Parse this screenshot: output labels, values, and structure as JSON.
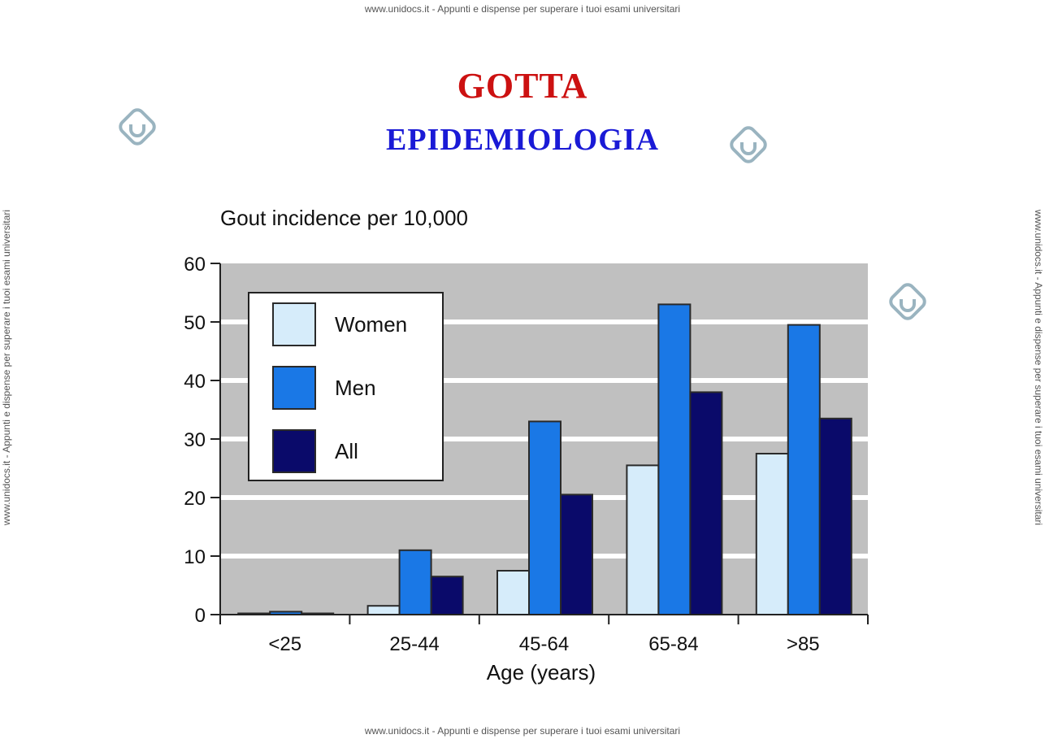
{
  "watermark": {
    "top": "www.unidocs.it - Appunti e dispense per superare i tuoi esami universitari",
    "bottom": "www.unidocs.it - Appunti e dispense per superare i tuoi esami universitari",
    "left": "www.unidocs.it - Appunti e dispense per superare i tuoi esami universitari",
    "right": "www.unidocs.it - Appunti e dispense per superare i tuoi esami universitari"
  },
  "slide": {
    "title": "GOTTA",
    "subtitle": "EPIDEMIOLOGIA",
    "title_color": "#cc1111",
    "subtitle_color": "#1a1ad6"
  },
  "chart_data": {
    "type": "bar",
    "title": "Gout incidence per 10,000",
    "xlabel": "Age (years)",
    "ylabel": "",
    "ylim": [
      0,
      60
    ],
    "yticks": [
      0,
      10,
      20,
      30,
      40,
      50,
      60
    ],
    "grid": true,
    "legend_position": "top-left",
    "categories": [
      "<25",
      "25-44",
      "45-64",
      "65-84",
      ">85"
    ],
    "series": [
      {
        "name": "Women",
        "color": "#d6ecfa",
        "values": [
          0,
          1.5,
          7.5,
          25.5,
          27.5
        ]
      },
      {
        "name": "Men",
        "color": "#1a78e6",
        "values": [
          0.5,
          11,
          33,
          53,
          49.5
        ]
      },
      {
        "name": "All",
        "color": "#0a0a6a",
        "values": [
          0.2,
          6.5,
          20.5,
          38,
          33.5
        ]
      }
    ]
  }
}
